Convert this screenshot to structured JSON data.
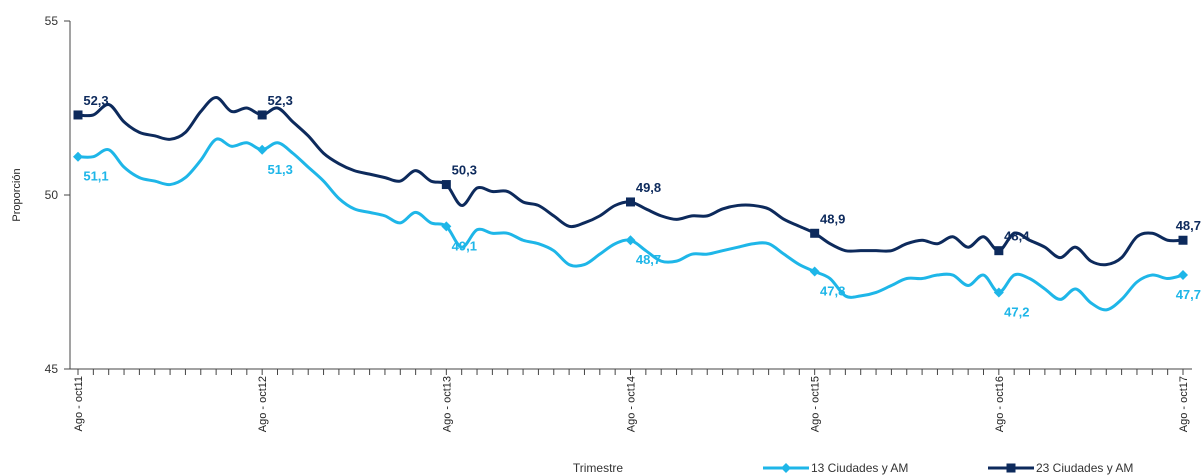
{
  "chart_data": {
    "type": "line",
    "x_label": "Trimestre",
    "y_label": "Proporción",
    "categories": [
      "Ago - oct11",
      null,
      null,
      null,
      null,
      null,
      null,
      null,
      null,
      null,
      null,
      null,
      "Ago - oct12",
      null,
      null,
      null,
      null,
      null,
      null,
      null,
      null,
      null,
      null,
      null,
      "Ago - oct13",
      null,
      null,
      null,
      null,
      null,
      null,
      null,
      null,
      null,
      null,
      null,
      "Ago - oct14",
      null,
      null,
      null,
      null,
      null,
      null,
      null,
      null,
      null,
      null,
      null,
      "Ago - oct15",
      null,
      null,
      null,
      null,
      null,
      null,
      null,
      null,
      null,
      null,
      null,
      "Ago - oct16",
      null,
      null,
      null,
      null,
      null,
      null,
      null,
      null,
      null,
      null,
      null,
      "Ago - oct17"
    ],
    "series": [
      {
        "name": "13 Ciudades y AM",
        "color": "#1eb6e8",
        "marker": "diamond",
        "values": [
          51.1,
          51.1,
          51.3,
          50.8,
          50.5,
          50.4,
          50.3,
          50.5,
          51.0,
          51.6,
          51.4,
          51.5,
          51.3,
          51.5,
          51.2,
          50.8,
          50.4,
          49.9,
          49.6,
          49.5,
          49.4,
          49.2,
          49.5,
          49.2,
          49.1,
          48.5,
          49.0,
          48.9,
          48.9,
          48.7,
          48.6,
          48.4,
          48.0,
          48.0,
          48.3,
          48.6,
          48.7,
          48.4,
          48.1,
          48.1,
          48.3,
          48.3,
          48.4,
          48.5,
          48.6,
          48.6,
          48.3,
          48.0,
          47.8,
          47.6,
          47.1,
          47.1,
          47.2,
          47.4,
          47.6,
          47.6,
          47.7,
          47.7,
          47.4,
          47.7,
          47.2,
          47.7,
          47.6,
          47.3,
          47.0,
          47.3,
          46.9,
          46.7,
          47.0,
          47.5,
          47.7,
          47.6,
          47.7
        ],
        "value_labels": [
          "51,1",
          null,
          null,
          null,
          null,
          null,
          null,
          null,
          null,
          null,
          null,
          null,
          "51,3",
          null,
          null,
          null,
          null,
          null,
          null,
          null,
          null,
          null,
          null,
          null,
          "49,1",
          null,
          null,
          null,
          null,
          null,
          null,
          null,
          null,
          null,
          null,
          null,
          "48,7",
          null,
          null,
          null,
          null,
          null,
          null,
          null,
          null,
          null,
          null,
          null,
          "47,8",
          null,
          null,
          null,
          null,
          null,
          null,
          null,
          null,
          null,
          null,
          null,
          "47,2",
          null,
          null,
          null,
          null,
          null,
          null,
          null,
          null,
          null,
          null,
          null,
          "47,7"
        ]
      },
      {
        "name": "23  Ciudades y AM",
        "color": "#0d2a5c",
        "marker": "square",
        "values": [
          52.3,
          52.3,
          52.6,
          52.1,
          51.8,
          51.7,
          51.6,
          51.8,
          52.4,
          52.8,
          52.4,
          52.5,
          52.3,
          52.5,
          52.1,
          51.7,
          51.2,
          50.9,
          50.7,
          50.6,
          50.5,
          50.4,
          50.7,
          50.4,
          50.3,
          49.7,
          50.2,
          50.1,
          50.1,
          49.8,
          49.7,
          49.4,
          49.1,
          49.2,
          49.4,
          49.7,
          49.8,
          49.6,
          49.4,
          49.3,
          49.4,
          49.4,
          49.6,
          49.7,
          49.7,
          49.6,
          49.3,
          49.1,
          48.9,
          48.6,
          48.4,
          48.4,
          48.4,
          48.4,
          48.6,
          48.7,
          48.6,
          48.8,
          48.5,
          48.8,
          48.4,
          48.9,
          48.7,
          48.5,
          48.2,
          48.5,
          48.1,
          48.0,
          48.2,
          48.8,
          48.9,
          48.7,
          48.7
        ],
        "value_labels": [
          "52,3",
          null,
          null,
          null,
          null,
          null,
          null,
          null,
          null,
          null,
          null,
          null,
          "52,3",
          null,
          null,
          null,
          null,
          null,
          null,
          null,
          null,
          null,
          null,
          null,
          "50,3",
          null,
          null,
          null,
          null,
          null,
          null,
          null,
          null,
          null,
          null,
          null,
          "49,8",
          null,
          null,
          null,
          null,
          null,
          null,
          null,
          null,
          null,
          null,
          null,
          "48,9",
          null,
          null,
          null,
          null,
          null,
          null,
          null,
          null,
          null,
          null,
          null,
          "48,4",
          null,
          null,
          null,
          null,
          null,
          null,
          null,
          null,
          null,
          null,
          null,
          "48,7"
        ]
      }
    ],
    "ylim": [
      45,
      55
    ],
    "yticks": [
      45,
      50,
      55
    ],
    "grid": false,
    "legend": "bottom-right"
  }
}
